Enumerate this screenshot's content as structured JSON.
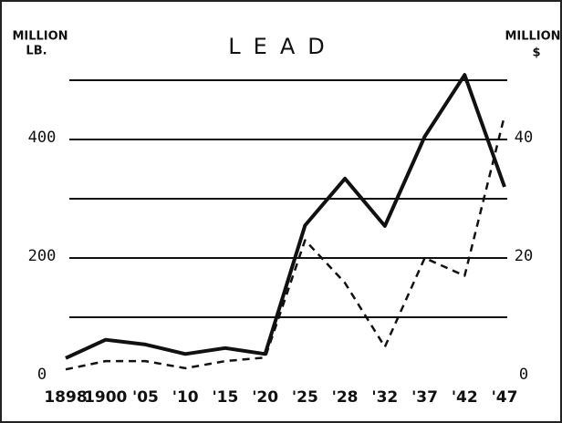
{
  "chart_data": {
    "type": "line",
    "title": "LEAD",
    "y_label": [
      "MILLION",
      "LB."
    ],
    "y2_label": [
      "MILLION",
      "$"
    ],
    "categories": [
      "1898",
      "1900",
      "'05",
      "'10",
      "'15",
      "'20",
      "'25",
      "'28",
      "'32",
      "'37",
      "'42",
      "'47"
    ],
    "series": [
      {
        "values": [
          31,
          62,
          54,
          38,
          48,
          38,
          255,
          334,
          254,
          405,
          509,
          320
        ],
        "color": "#111111",
        "style": "solid"
      },
      {
        "values": [
          1.2,
          2.6,
          2.6,
          1.4,
          2.6,
          3.2,
          23,
          15.8,
          5,
          20,
          17,
          44
        ],
        "color": "#111111",
        "style": "dashed",
        "axis": "y2"
      }
    ],
    "ylim": [
      0,
      520
    ],
    "yticks": [
      0,
      200,
      400
    ],
    "ygrid": [
      100,
      200,
      300,
      400,
      500
    ],
    "y2lim": [
      0,
      52
    ],
    "y2ticks": [
      0,
      20,
      40
    ]
  }
}
